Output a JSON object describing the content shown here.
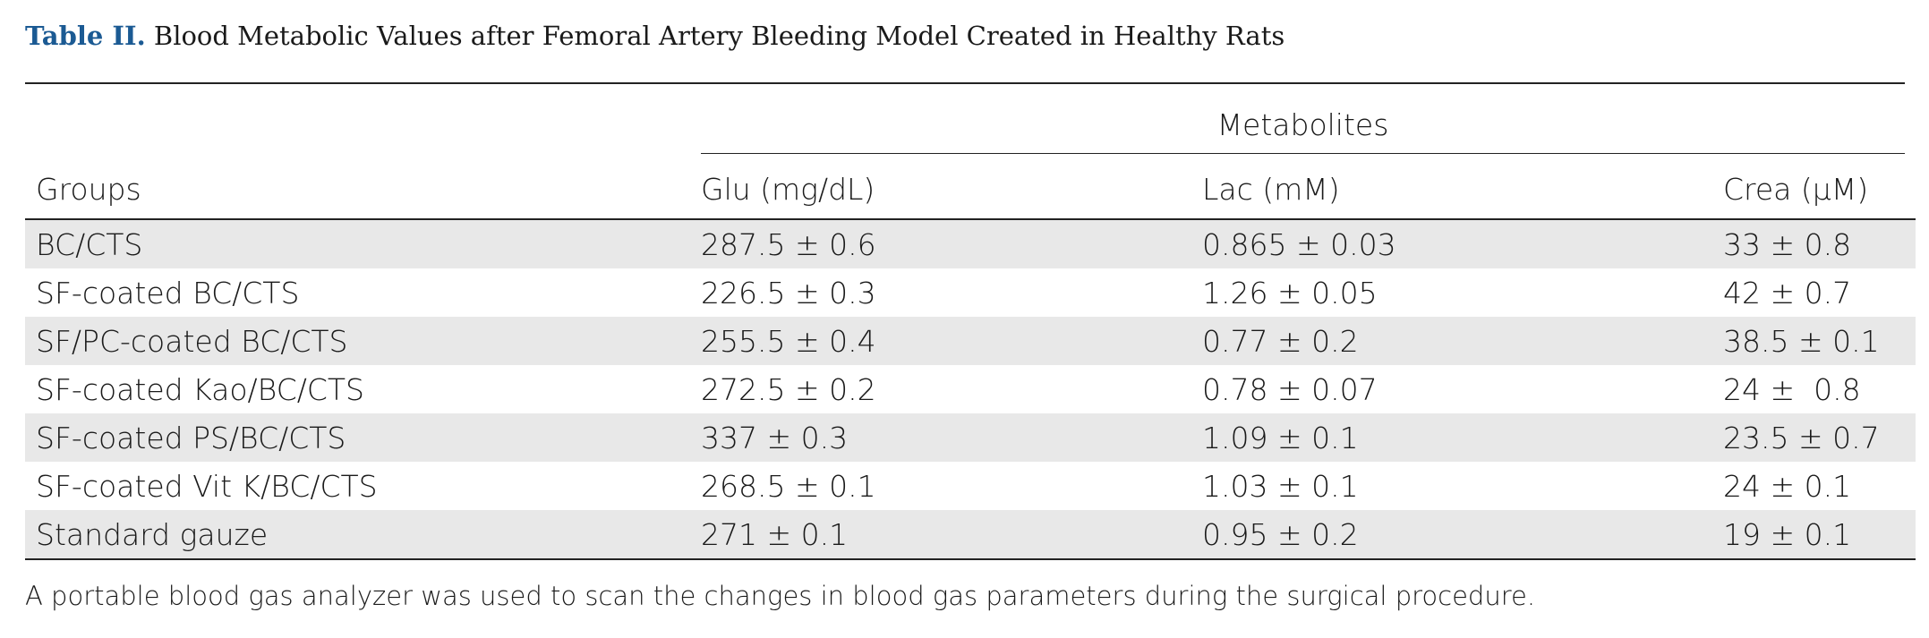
{
  "caption": {
    "label": "Table II.",
    "title": "Blood Metabolic Values after Femoral Artery Bleeding Model Created in Healthy Rats"
  },
  "table": {
    "spanner": "Metabolites",
    "columns": [
      "Groups",
      "Glu (mg/dL)",
      "Lac (mM)",
      "Crea (μM)"
    ],
    "rows": [
      {
        "group": "BC/CTS",
        "glu": "287.5 ± 0.6",
        "lac": "0.865 ± 0.03",
        "crea": "33 ± 0.8"
      },
      {
        "group": "SF-coated BC/CTS",
        "glu": "226.5 ± 0.3",
        "lac": "1.26 ± 0.05",
        "crea": "42 ± 0.7"
      },
      {
        "group": "SF/PC-coated BC/CTS",
        "glu": "255.5 ± 0.4",
        "lac": "0.77 ± 0.2",
        "crea": "38.5 ± 0.1"
      },
      {
        "group": "SF-coated Kao/BC/CTS",
        "glu": "272.5 ± 0.2",
        "lac": "0.78 ± 0.07",
        "crea": "24 ±  0.8"
      },
      {
        "group": "SF-coated PS/BC/CTS",
        "glu": "337 ± 0.3",
        "lac": "1.09 ± 0.1",
        "crea": "23.5 ± 0.7"
      },
      {
        "group": "SF-coated Vit K/BC/CTS",
        "glu": "268.5 ± 0.1",
        "lac": "1.03 ± 0.1",
        "crea": "24 ± 0.1"
      },
      {
        "group": "Standard gauze",
        "glu": "271 ± 0.1",
        "lac": "0.95 ± 0.2",
        "crea": "19 ± 0.1"
      }
    ]
  },
  "footnote": "A portable blood gas analyzer was used to scan the changes in blood gas parameters during the surgical procedure.",
  "colors": {
    "caption_label": "#1b5a93",
    "row_shade": "#e8e8e8",
    "rule": "#222222"
  }
}
